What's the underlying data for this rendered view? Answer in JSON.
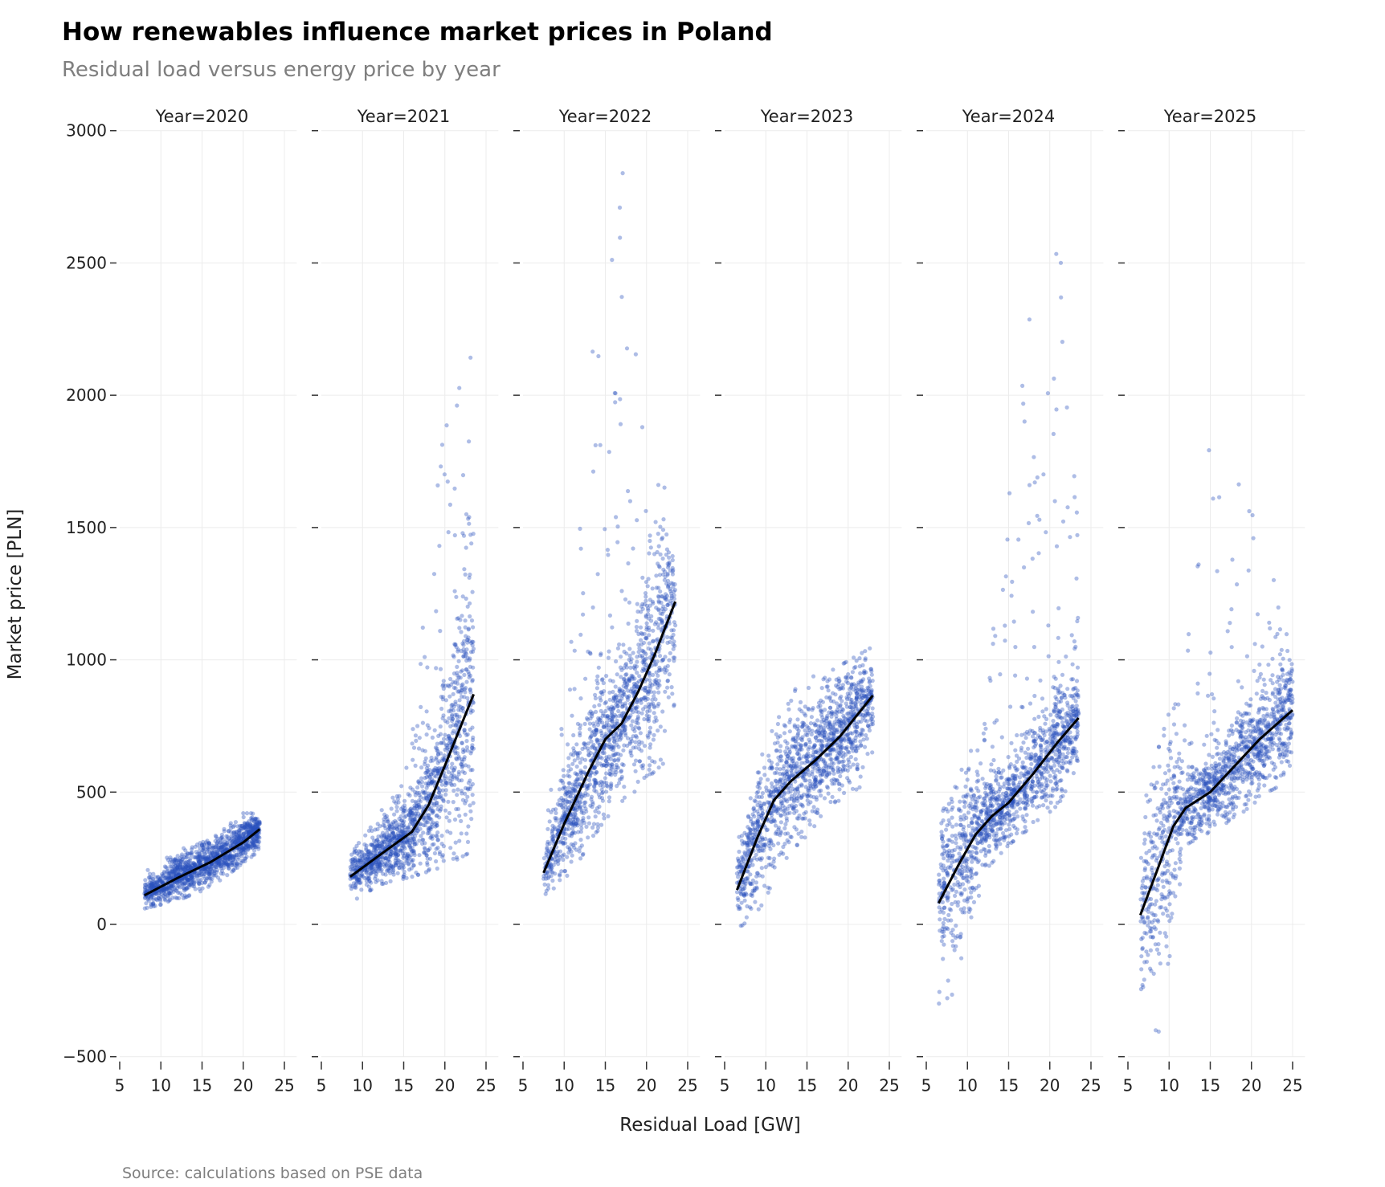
{
  "title": "How renewables influence market prices in Poland",
  "subtitle": "Residual load versus energy price by year",
  "source": "Source: calculations based on PSE data",
  "chart_data": {
    "type": "scatter",
    "layout": "facets side by side, shared y axis",
    "xlabel": "Residual Load [GW]",
    "ylabel": "Market price [PLN]",
    "xlim": [
      5,
      26.5
    ],
    "ylim": [
      -500,
      3000
    ],
    "xticks": [
      5,
      10,
      15,
      20,
      25
    ],
    "yticks": [
      -500,
      0,
      500,
      1000,
      1500,
      2000,
      2500,
      3000
    ],
    "grid": true,
    "point_color": "#2a52be",
    "trend_color": "#000000",
    "facets": [
      {
        "label": "Year=2020",
        "trend": [
          [
            8,
            110
          ],
          [
            12,
            175
          ],
          [
            16,
            235
          ],
          [
            20,
            310
          ],
          [
            22,
            360
          ]
        ],
        "cloud_envelope": [
          [
            8,
            60,
            200
          ],
          [
            12,
            90,
            280
          ],
          [
            16,
            140,
            320
          ],
          [
            20,
            230,
            420
          ],
          [
            22,
            280,
            420
          ]
        ]
      },
      {
        "label": "Year=2021",
        "trend": [
          [
            8.5,
            180
          ],
          [
            12,
            260
          ],
          [
            16,
            350
          ],
          [
            18,
            450
          ],
          [
            20,
            600
          ],
          [
            23.5,
            870
          ]
        ],
        "cloud_envelope": [
          [
            8.5,
            80,
            260
          ],
          [
            12,
            150,
            420
          ],
          [
            16,
            180,
            700
          ],
          [
            18,
            200,
            1400
          ],
          [
            20,
            220,
            2000
          ],
          [
            23.5,
            280,
            2400
          ]
        ]
      },
      {
        "label": "Year=2022",
        "trend": [
          [
            7.5,
            195
          ],
          [
            10,
            380
          ],
          [
            13,
            580
          ],
          [
            15,
            700
          ],
          [
            17,
            760
          ],
          [
            19,
            880
          ],
          [
            21,
            1020
          ],
          [
            23.5,
            1220
          ]
        ],
        "cloud_envelope": [
          [
            7.5,
            100,
            400
          ],
          [
            10,
            150,
            900
          ],
          [
            13,
            300,
            2000
          ],
          [
            15,
            400,
            2950
          ],
          [
            17,
            450,
            2900
          ],
          [
            20,
            550,
            1900
          ],
          [
            23.5,
            650,
            1500
          ]
        ]
      },
      {
        "label": "Year=2023",
        "trend": [
          [
            6.5,
            130
          ],
          [
            9,
            330
          ],
          [
            11,
            470
          ],
          [
            13,
            540
          ],
          [
            16,
            620
          ],
          [
            19,
            710
          ],
          [
            23,
            865
          ]
        ],
        "cloud_envelope": [
          [
            6.5,
            -50,
            300
          ],
          [
            9,
            -50,
            600
          ],
          [
            11,
            200,
            750
          ],
          [
            14,
            300,
            920
          ],
          [
            18,
            450,
            960
          ],
          [
            23,
            550,
            1050
          ]
        ]
      },
      {
        "label": "Year=2024",
        "trend": [
          [
            6.5,
            80
          ],
          [
            9,
            230
          ],
          [
            11,
            340
          ],
          [
            13,
            410
          ],
          [
            15,
            460
          ],
          [
            18,
            570
          ],
          [
            21,
            690
          ],
          [
            23.5,
            780
          ]
        ],
        "cloud_envelope": [
          [
            6.5,
            -300,
            400
          ],
          [
            9,
            -250,
            550
          ],
          [
            12,
            200,
            900
          ],
          [
            15,
            300,
            1600
          ],
          [
            17,
            350,
            2300
          ],
          [
            21,
            450,
            2700
          ],
          [
            23.5,
            600,
            1450
          ]
        ]
      },
      {
        "label": "Year=2025",
        "trend": [
          [
            6.5,
            35
          ],
          [
            8.5,
            200
          ],
          [
            10.5,
            370
          ],
          [
            12,
            440
          ],
          [
            15,
            500
          ],
          [
            18,
            600
          ],
          [
            21,
            700
          ],
          [
            25,
            810
          ]
        ],
        "cloud_envelope": [
          [
            6.5,
            -450,
            400
          ],
          [
            9,
            -400,
            700
          ],
          [
            12,
            300,
            1000
          ],
          [
            15,
            350,
            1850
          ],
          [
            18,
            400,
            1800
          ],
          [
            22,
            500,
            1400
          ],
          [
            25,
            550,
            1000
          ]
        ]
      }
    ]
  }
}
